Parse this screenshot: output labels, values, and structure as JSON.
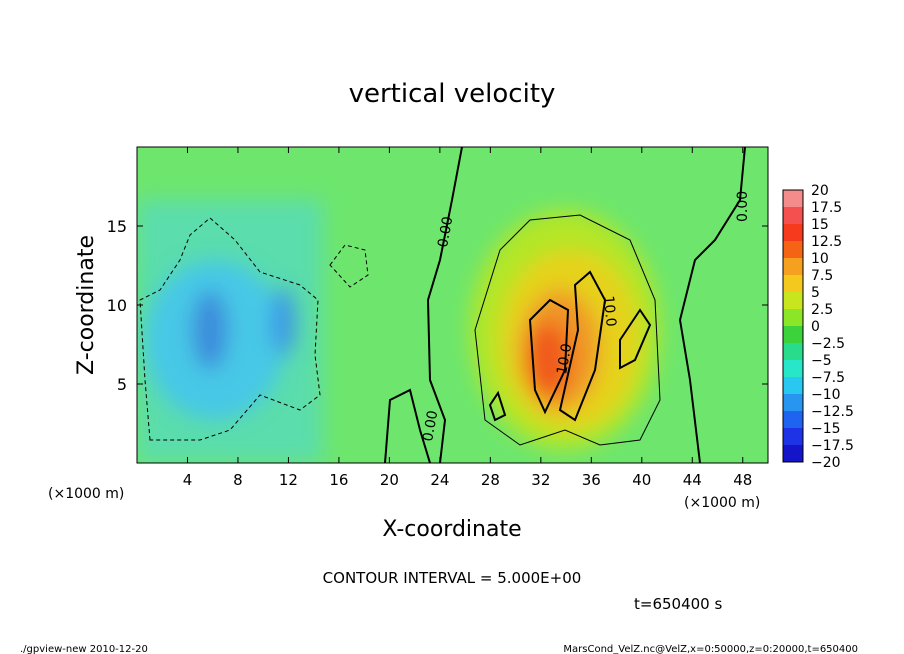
{
  "chart_data": {
    "type": "heatmap",
    "title": "vertical velocity",
    "xlabel": "X-coordinate",
    "ylabel": "Z-coordinate",
    "x_unit": "(×1000 m)",
    "y_unit": "(×1000 m)",
    "xlim": [
      0,
      50
    ],
    "ylim": [
      0,
      20
    ],
    "x_ticks": [
      4,
      8,
      12,
      16,
      20,
      24,
      28,
      32,
      36,
      40,
      44,
      48
    ],
    "y_ticks": [
      5,
      10,
      15
    ],
    "contour_interval_text": "CONTOUR INTERVAL = 5.000E+00",
    "contour_labels": [
      "0.00",
      "0.00",
      "0.00",
      "10.0",
      "10.0"
    ],
    "time_label": "t=650400  s",
    "colorbar": {
      "levels": [
        20,
        17.5,
        15,
        12.5,
        10,
        7.5,
        5,
        2.5,
        0,
        -2.5,
        -5,
        -7.5,
        -10,
        -12.5,
        -15,
        -17.5,
        -20
      ],
      "colors": [
        "#f58c8c",
        "#f55050",
        "#f53a1e",
        "#f56414",
        "#f5a01e",
        "#f5c81e",
        "#c8e61e",
        "#8ce628",
        "#3cd23c",
        "#28dc8c",
        "#28e6c8",
        "#28c8f0",
        "#2896f0",
        "#1e64f0",
        "#1e32e6",
        "#1414c8",
        "#6414b4"
      ]
    }
  },
  "footer": {
    "left": "./gpview-new   2010-12-20",
    "right": "MarsCond_VelZ.nc@VelZ,x=0:50000,z=0:20000,t=650400"
  }
}
